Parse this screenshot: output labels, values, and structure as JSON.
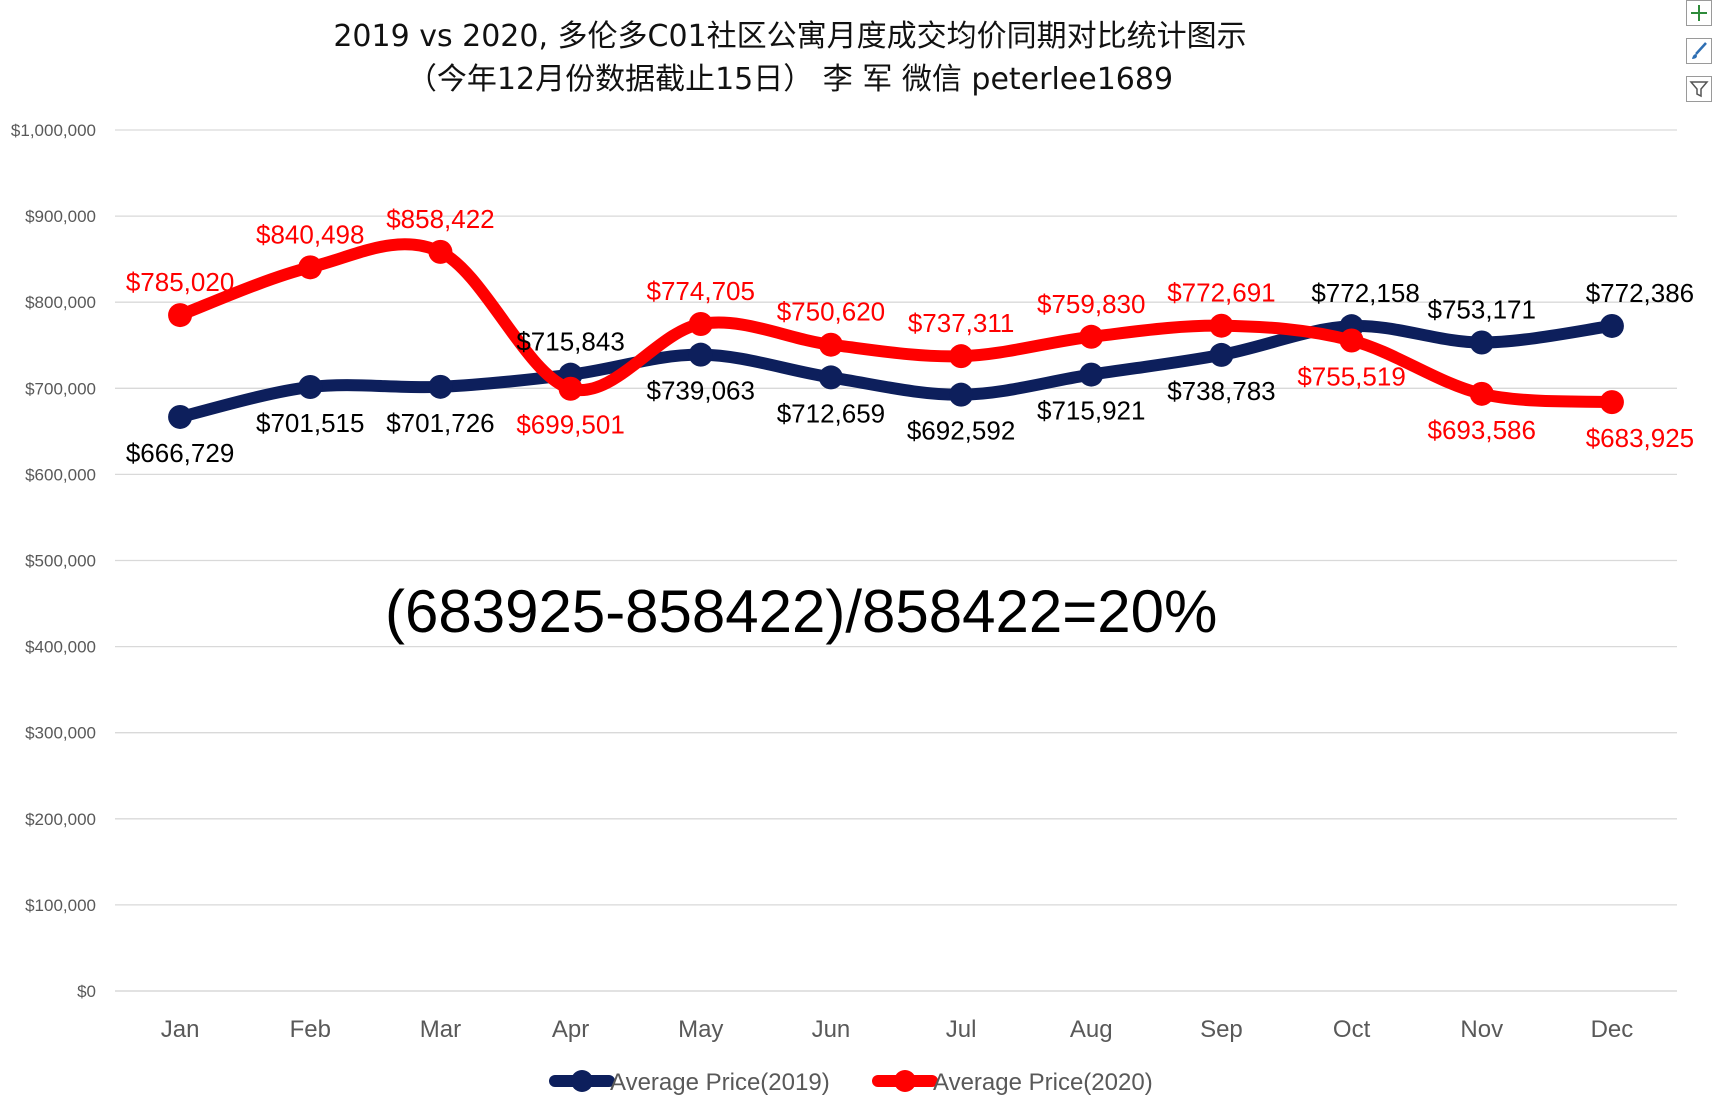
{
  "chart_data": {
    "type": "line",
    "title": "2019 vs 2020, 多伦多C01社区公寓月度成交均价同期对比统计图示",
    "subtitle": "（今年12月份数据截止15日） 李 军 微信 peterlee1689",
    "categories": [
      "Jan",
      "Feb",
      "Mar",
      "Apr",
      "May",
      "Jun",
      "Jul",
      "Aug",
      "Sep",
      "Oct",
      "Nov",
      "Dec"
    ],
    "ylim": [
      0,
      1000000
    ],
    "yticks": [
      0,
      100000,
      200000,
      300000,
      400000,
      500000,
      600000,
      700000,
      800000,
      900000,
      1000000
    ],
    "ytick_labels": [
      "$0",
      "$100,000",
      "$200,000",
      "$300,000",
      "$400,000",
      "$500,000",
      "$600,000",
      "$700,000",
      "$800,000",
      "$900,000",
      "$1,000,000"
    ],
    "grid": true,
    "legend": "bottom",
    "series": [
      {
        "name": "Average Price(2019)",
        "color": "#0d1f5c",
        "values": [
          666729,
          701515,
          701726,
          715843,
          739063,
          712659,
          692592,
          715921,
          738783,
          772158,
          753171,
          772386
        ],
        "labels": [
          "$666,729",
          "$701,515",
          "$701,726",
          "$715,843",
          "$739,063",
          "$712,659",
          "$692,592",
          "$715,921",
          "$738,783",
          "$772,158",
          "$753,171",
          "$772,386"
        ]
      },
      {
        "name": "Average Price(2020)",
        "color": "#ff0000",
        "values": [
          785020,
          840498,
          858422,
          699501,
          774705,
          750620,
          737311,
          759830,
          772691,
          755519,
          693586,
          683925
        ],
        "labels": [
          "$785,020",
          "$840,498",
          "$858,422",
          "$699,501",
          "$774,705",
          "$750,620",
          "$737,311",
          "$759,830",
          "$772,691",
          "$755,519",
          "$693,586",
          "$683,925"
        ]
      }
    ],
    "annotation": "(683925-858422)/858422=20%"
  },
  "toolbar": {
    "icons": [
      "plus-icon",
      "brush-icon",
      "filter-icon"
    ]
  }
}
